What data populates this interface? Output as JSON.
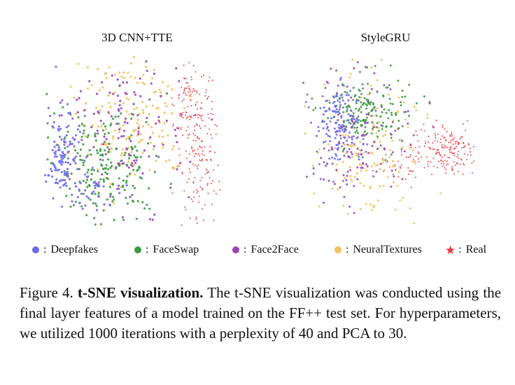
{
  "figure": {
    "panels": [
      {
        "title": "3D CNN+TTE"
      },
      {
        "title": "StyleGRU"
      }
    ],
    "legend": [
      {
        "label": "Deepfakes",
        "color": "#6b6bea",
        "marker": "circle"
      },
      {
        "label": "FaceSwap",
        "color": "#3f9a46",
        "marker": "circle"
      },
      {
        "label": "Face2Face",
        "color": "#9b45b5",
        "marker": "circle"
      },
      {
        "label": "NeuralTextures",
        "color": "#f4c25c",
        "marker": "circle"
      },
      {
        "label": "Real",
        "color": "#e8373c",
        "marker": "star"
      }
    ],
    "legend_colon": ":"
  },
  "caption": {
    "label": "Figure 4.",
    "bold_title": "t-SNE visualization.",
    "text": "The t-SNE visualization was conducted using the final layer features of a model trained on the FF++ test set. For hyperparameters, we utilized 1000 iterations with a perplexity of 40 and PCA to 30."
  }
}
